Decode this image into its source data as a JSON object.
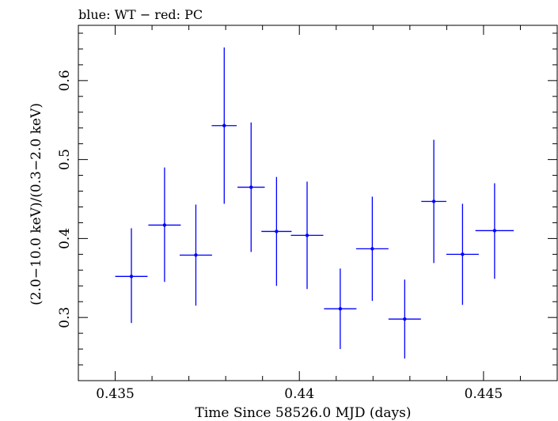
{
  "chart_data": {
    "type": "scatter",
    "title": "blue: WT − red: PC",
    "xlabel": "Time Since 58526.0 MJD (days)",
    "ylabel": "(2.0−10.0 keV)/(0.3−2.0 keV)",
    "xlim": [
      0.434,
      0.447
    ],
    "ylim": [
      0.22,
      0.67
    ],
    "x_ticks": [
      {
        "value": 0.435,
        "label": "0.435"
      },
      {
        "value": 0.44,
        "label": "0.44"
      },
      {
        "value": 0.445,
        "label": "0.445"
      }
    ],
    "y_ticks": [
      {
        "value": 0.3,
        "label": "0.3"
      },
      {
        "value": 0.4,
        "label": "0.4"
      },
      {
        "value": 0.5,
        "label": "0.5"
      },
      {
        "value": 0.6,
        "label": "0.6"
      }
    ],
    "x_minor_step": 0.001,
    "y_minor_step": 0.02,
    "series": [
      {
        "name": "WT",
        "color": "#0000ff",
        "points": [
          {
            "x": 0.43544,
            "xerr": 0.00044,
            "y": 0.352,
            "yerr_low": 0.059,
            "yerr_high": 0.061
          },
          {
            "x": 0.43634,
            "xerr": 0.00044,
            "y": 0.417,
            "yerr_low": 0.072,
            "yerr_high": 0.073
          },
          {
            "x": 0.43719,
            "xerr": 0.00044,
            "y": 0.379,
            "yerr_low": 0.064,
            "yerr_high": 0.064
          },
          {
            "x": 0.43796,
            "xerr": 0.00034,
            "y": 0.543,
            "yerr_low": 0.099,
            "yerr_high": 0.099
          },
          {
            "x": 0.43869,
            "xerr": 0.00037,
            "y": 0.465,
            "yerr_low": 0.082,
            "yerr_high": 0.082
          },
          {
            "x": 0.43938,
            "xerr": 0.00041,
            "y": 0.409,
            "yerr_low": 0.069,
            "yerr_high": 0.069
          },
          {
            "x": 0.44021,
            "xerr": 0.00044,
            "y": 0.404,
            "yerr_low": 0.068,
            "yerr_high": 0.068
          },
          {
            "x": 0.44111,
            "xerr": 0.00044,
            "y": 0.311,
            "yerr_low": 0.051,
            "yerr_high": 0.051
          },
          {
            "x": 0.44198,
            "xerr": 0.00044,
            "y": 0.387,
            "yerr_low": 0.066,
            "yerr_high": 0.066
          },
          {
            "x": 0.44286,
            "xerr": 0.00044,
            "y": 0.298,
            "yerr_low": 0.05,
            "yerr_high": 0.05
          },
          {
            "x": 0.44365,
            "xerr": 0.00034,
            "y": 0.447,
            "yerr_low": 0.078,
            "yerr_high": 0.078
          },
          {
            "x": 0.44443,
            "xerr": 0.00044,
            "y": 0.38,
            "yerr_low": 0.064,
            "yerr_high": 0.064
          },
          {
            "x": 0.4453,
            "xerr": 0.00052,
            "y": 0.41,
            "yerr_low": 0.061,
            "yerr_high": 0.06
          }
        ]
      }
    ]
  }
}
